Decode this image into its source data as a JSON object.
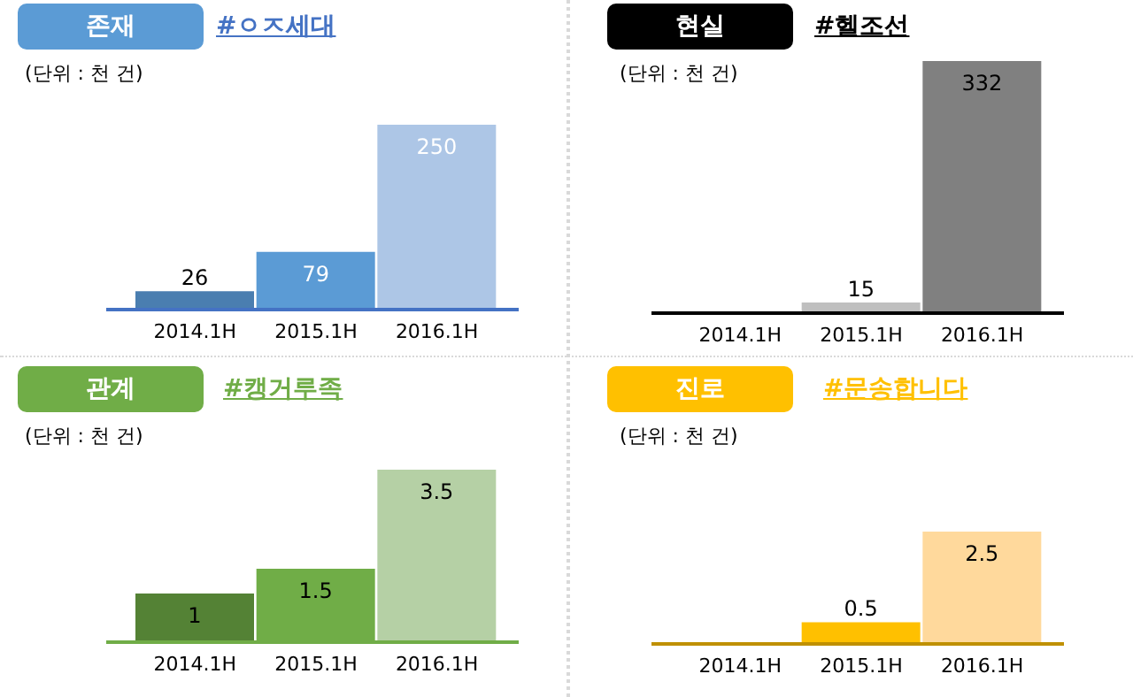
{
  "chart_data": [
    {
      "type": "bar",
      "title": "존재",
      "subtitle": "#ㅇㅈ세대",
      "annotations": [
        "(단위 : 천 건)"
      ],
      "categories": [
        "2014.1H",
        "2015.1H",
        "2016.1H"
      ],
      "values": [
        26,
        79,
        250
      ],
      "colors": [
        "#4a7eb0",
        "#5b9bd5",
        "#adc6e6"
      ],
      "data_labels": true
    },
    {
      "type": "bar",
      "title": "현실",
      "subtitle": "#헬조선",
      "annotations": [
        "(단위 : 천 건)"
      ],
      "categories": [
        "2014.1H",
        "2015.1H",
        "2016.1H"
      ],
      "values": [
        null,
        15,
        332
      ],
      "colors": [
        "#808080",
        "#bfbfbf",
        "#808080"
      ],
      "data_labels": true
    },
    {
      "type": "bar",
      "title": "관계",
      "subtitle": "#캥거루족",
      "annotations": [
        "(단위 : 천 건)"
      ],
      "categories": [
        "2014.1H",
        "2015.1H",
        "2016.1H"
      ],
      "values": [
        1,
        1.5,
        3.5
      ],
      "colors": [
        "#548235",
        "#70ad47",
        "#b5d0a5"
      ],
      "data_labels": true
    },
    {
      "type": "bar",
      "title": "진로",
      "subtitle": "#문송합니다",
      "annotations": [
        "(단위 : 천 건)"
      ],
      "categories": [
        "2014.1H",
        "2015.1H",
        "2016.1H"
      ],
      "values": [
        0.02,
        0.5,
        2.5
      ],
      "colors": [
        "#bf9000",
        "#ffc000",
        "#ffd99c"
      ],
      "value_labels": [
        null,
        "0.5",
        "2.5"
      ]
    }
  ]
}
